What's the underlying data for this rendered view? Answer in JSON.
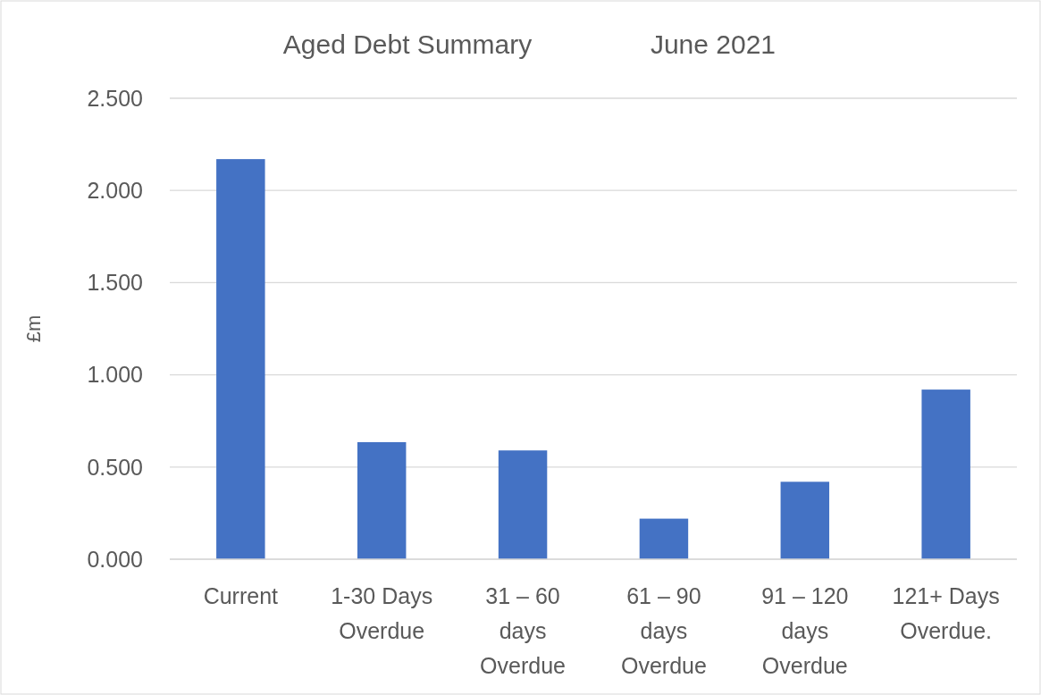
{
  "chart_data": {
    "type": "bar",
    "title": "Aged Debt Summary",
    "subtitle": "June 2021",
    "ylabel": "£m",
    "categories": [
      "Current",
      "1-30 Days Overdue",
      "31 – 60 days Overdue",
      "61 – 90 days Overdue",
      "91 – 120 days Overdue",
      "121+ Days Overdue."
    ],
    "values": [
      2.17,
      0.635,
      0.59,
      0.22,
      0.42,
      0.92
    ],
    "color": "#4472c4",
    "ylim": [
      0,
      2.5
    ],
    "yticks": [
      {
        "value": 0,
        "label": "0.000"
      },
      {
        "value": 0.5,
        "label": "0.500"
      },
      {
        "value": 1,
        "label": "1.000"
      },
      {
        "value": 1.5,
        "label": "1.500"
      },
      {
        "value": 2,
        "label": "2.000"
      },
      {
        "value": 2.5,
        "label": "2.500"
      }
    ],
    "grid": "y"
  }
}
